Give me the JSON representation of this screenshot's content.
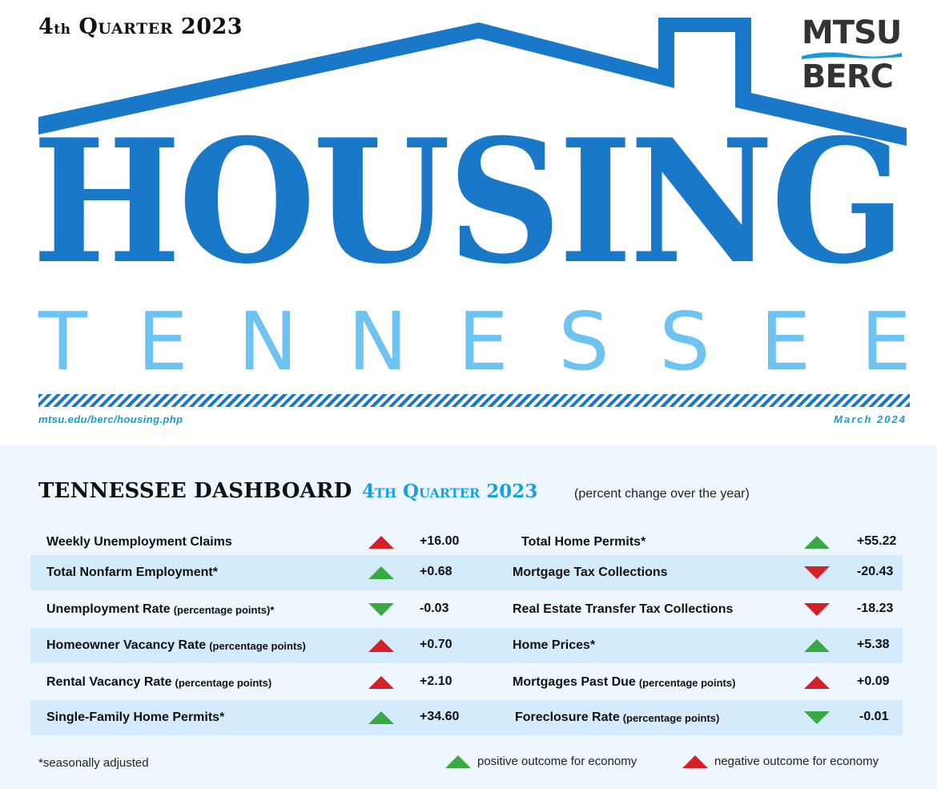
{
  "header": {
    "quarter_ordinal": "4",
    "quarter_suffix": "th",
    "quarter_rest": " Quarter 2023",
    "logo_top": "MTSU",
    "logo_bottom": "BERC",
    "title": "HOUSING",
    "subtitle_letters": [
      "T",
      "E",
      "N",
      "N",
      "E",
      "S",
      "S",
      "E",
      "E"
    ],
    "url": "mtsu.edu/berc/housing.php",
    "date": "March 2024"
  },
  "colors": {
    "brand_blue": "#1a78c8",
    "light_blue": "#6ec3f0",
    "accent_blue": "#1aa0e0",
    "positive_green": "#3aa944",
    "negative_red": "#d42027",
    "band_blue": "#d3ebfa"
  },
  "dashboard": {
    "title": "TENNESSEE DASHBOARD",
    "quarter": "4th Quarter 2023",
    "subtitle": "(percent change over the year)",
    "left": [
      {
        "label": "Weekly Unemployment Claims",
        "note": "",
        "value": "+16.00",
        "arrow": "up",
        "outcome": "negative"
      },
      {
        "label": "Total Nonfarm Employment*",
        "note": "",
        "value": "+0.68",
        "arrow": "up",
        "outcome": "positive"
      },
      {
        "label": "Unemployment Rate",
        "note": "(percentage points)*",
        "value": "-0.03",
        "arrow": "down",
        "outcome": "positive"
      },
      {
        "label": "Homeowner Vacancy Rate",
        "note": "(percentage points)",
        "value": "+0.70",
        "arrow": "up",
        "outcome": "negative"
      },
      {
        "label": "Rental Vacancy Rate",
        "note": "(percentage points)",
        "value": "+2.10",
        "arrow": "up",
        "outcome": "negative"
      },
      {
        "label": "Single-Family Home Permits*",
        "note": "",
        "value": "+34.60",
        "arrow": "up",
        "outcome": "positive"
      }
    ],
    "right": [
      {
        "label": "Total Home Permits*",
        "note": "",
        "value": "+55.22",
        "arrow": "up",
        "outcome": "positive"
      },
      {
        "label": "Mortgage Tax Collections",
        "note": "",
        "value": "-20.43",
        "arrow": "down",
        "outcome": "negative"
      },
      {
        "label": "Real Estate Transfer Tax Collections",
        "note": "",
        "value": "-18.23",
        "arrow": "down",
        "outcome": "negative"
      },
      {
        "label": "Home Prices*",
        "note": "",
        "value": "+5.38",
        "arrow": "up",
        "outcome": "positive"
      },
      {
        "label": "Mortgages Past Due",
        "note": "(percentage points)",
        "value": "+0.09",
        "arrow": "up",
        "outcome": "negative"
      },
      {
        "label": "Foreclosure Rate",
        "note": "(percentage points)",
        "value": "-0.01",
        "arrow": "down",
        "outcome": "positive"
      }
    ],
    "footnote": "*seasonally adjusted",
    "legend": {
      "positive": "positive outcome for economy",
      "negative": "negative outcome for economy"
    }
  }
}
